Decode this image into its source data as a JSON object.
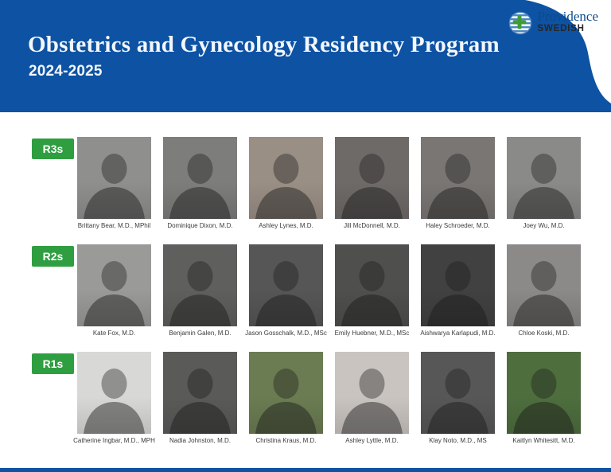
{
  "header": {
    "title": "Obstetrics and Gynecology Residency Program",
    "subtitle": "2024-2025"
  },
  "logo": {
    "providence": "Providence",
    "swedish": "SWEDISH"
  },
  "colors": {
    "header_blue": "#0d52a3",
    "label_green": "#2f9e41",
    "logo_navy": "#0b4a8c",
    "logo_icon_blue": "#4b86c2",
    "logo_icon_green": "#3f9c35",
    "name_text": "#3b3b3b"
  },
  "roster": {
    "rows": [
      {
        "label": "R3s",
        "residents": [
          {
            "name": "Brittany Bear, M.D., MPhil",
            "photo_bg": "#8f8f8d"
          },
          {
            "name": "Dominique Dixon, M.D.",
            "photo_bg": "#7d7d7b"
          },
          {
            "name": "Ashley Lynes, M.D.",
            "photo_bg": "#9a8f85"
          },
          {
            "name": "Jill McDonnell, M.D.",
            "photo_bg": "#6e6a68"
          },
          {
            "name": "Haley Schroeder, M.D.",
            "photo_bg": "#7a7674"
          },
          {
            "name": "Joey Wu, M.D.",
            "photo_bg": "#8a8a88"
          }
        ]
      },
      {
        "label": "R2s",
        "residents": [
          {
            "name": "Kate Fox, M.D.",
            "photo_bg": "#9a9a98"
          },
          {
            "name": "Benjamin Galen, M.D.",
            "photo_bg": "#5f5f5d"
          },
          {
            "name": "Jason Gosschalk, M.D., MSc",
            "photo_bg": "#565656"
          },
          {
            "name": "Emily Huebner, M.D., MSc",
            "photo_bg": "#4f4f4d"
          },
          {
            "name": "Aishwarya Karlapudi, M.D.",
            "photo_bg": "#414141"
          },
          {
            "name": "Chloe Koski, M.D.",
            "photo_bg": "#8c8a88"
          }
        ]
      },
      {
        "label": "R1s",
        "residents": [
          {
            "name": "Catherine Ingbar, M.D., MPH",
            "photo_bg": "#d8d8d6"
          },
          {
            "name": "Nadia Johnston, M.D.",
            "photo_bg": "#5a5a58"
          },
          {
            "name": "Christina Kraus, M.D.",
            "photo_bg": "#6b7c52"
          },
          {
            "name": "Ashley Lyttle, M.D.",
            "photo_bg": "#c9c4c0"
          },
          {
            "name": "Klay Noto, M.D., MS",
            "photo_bg": "#575757"
          },
          {
            "name": "Kaitlyn Whitesitt, M.D.",
            "photo_bg": "#4e6e3e"
          }
        ]
      }
    ]
  }
}
